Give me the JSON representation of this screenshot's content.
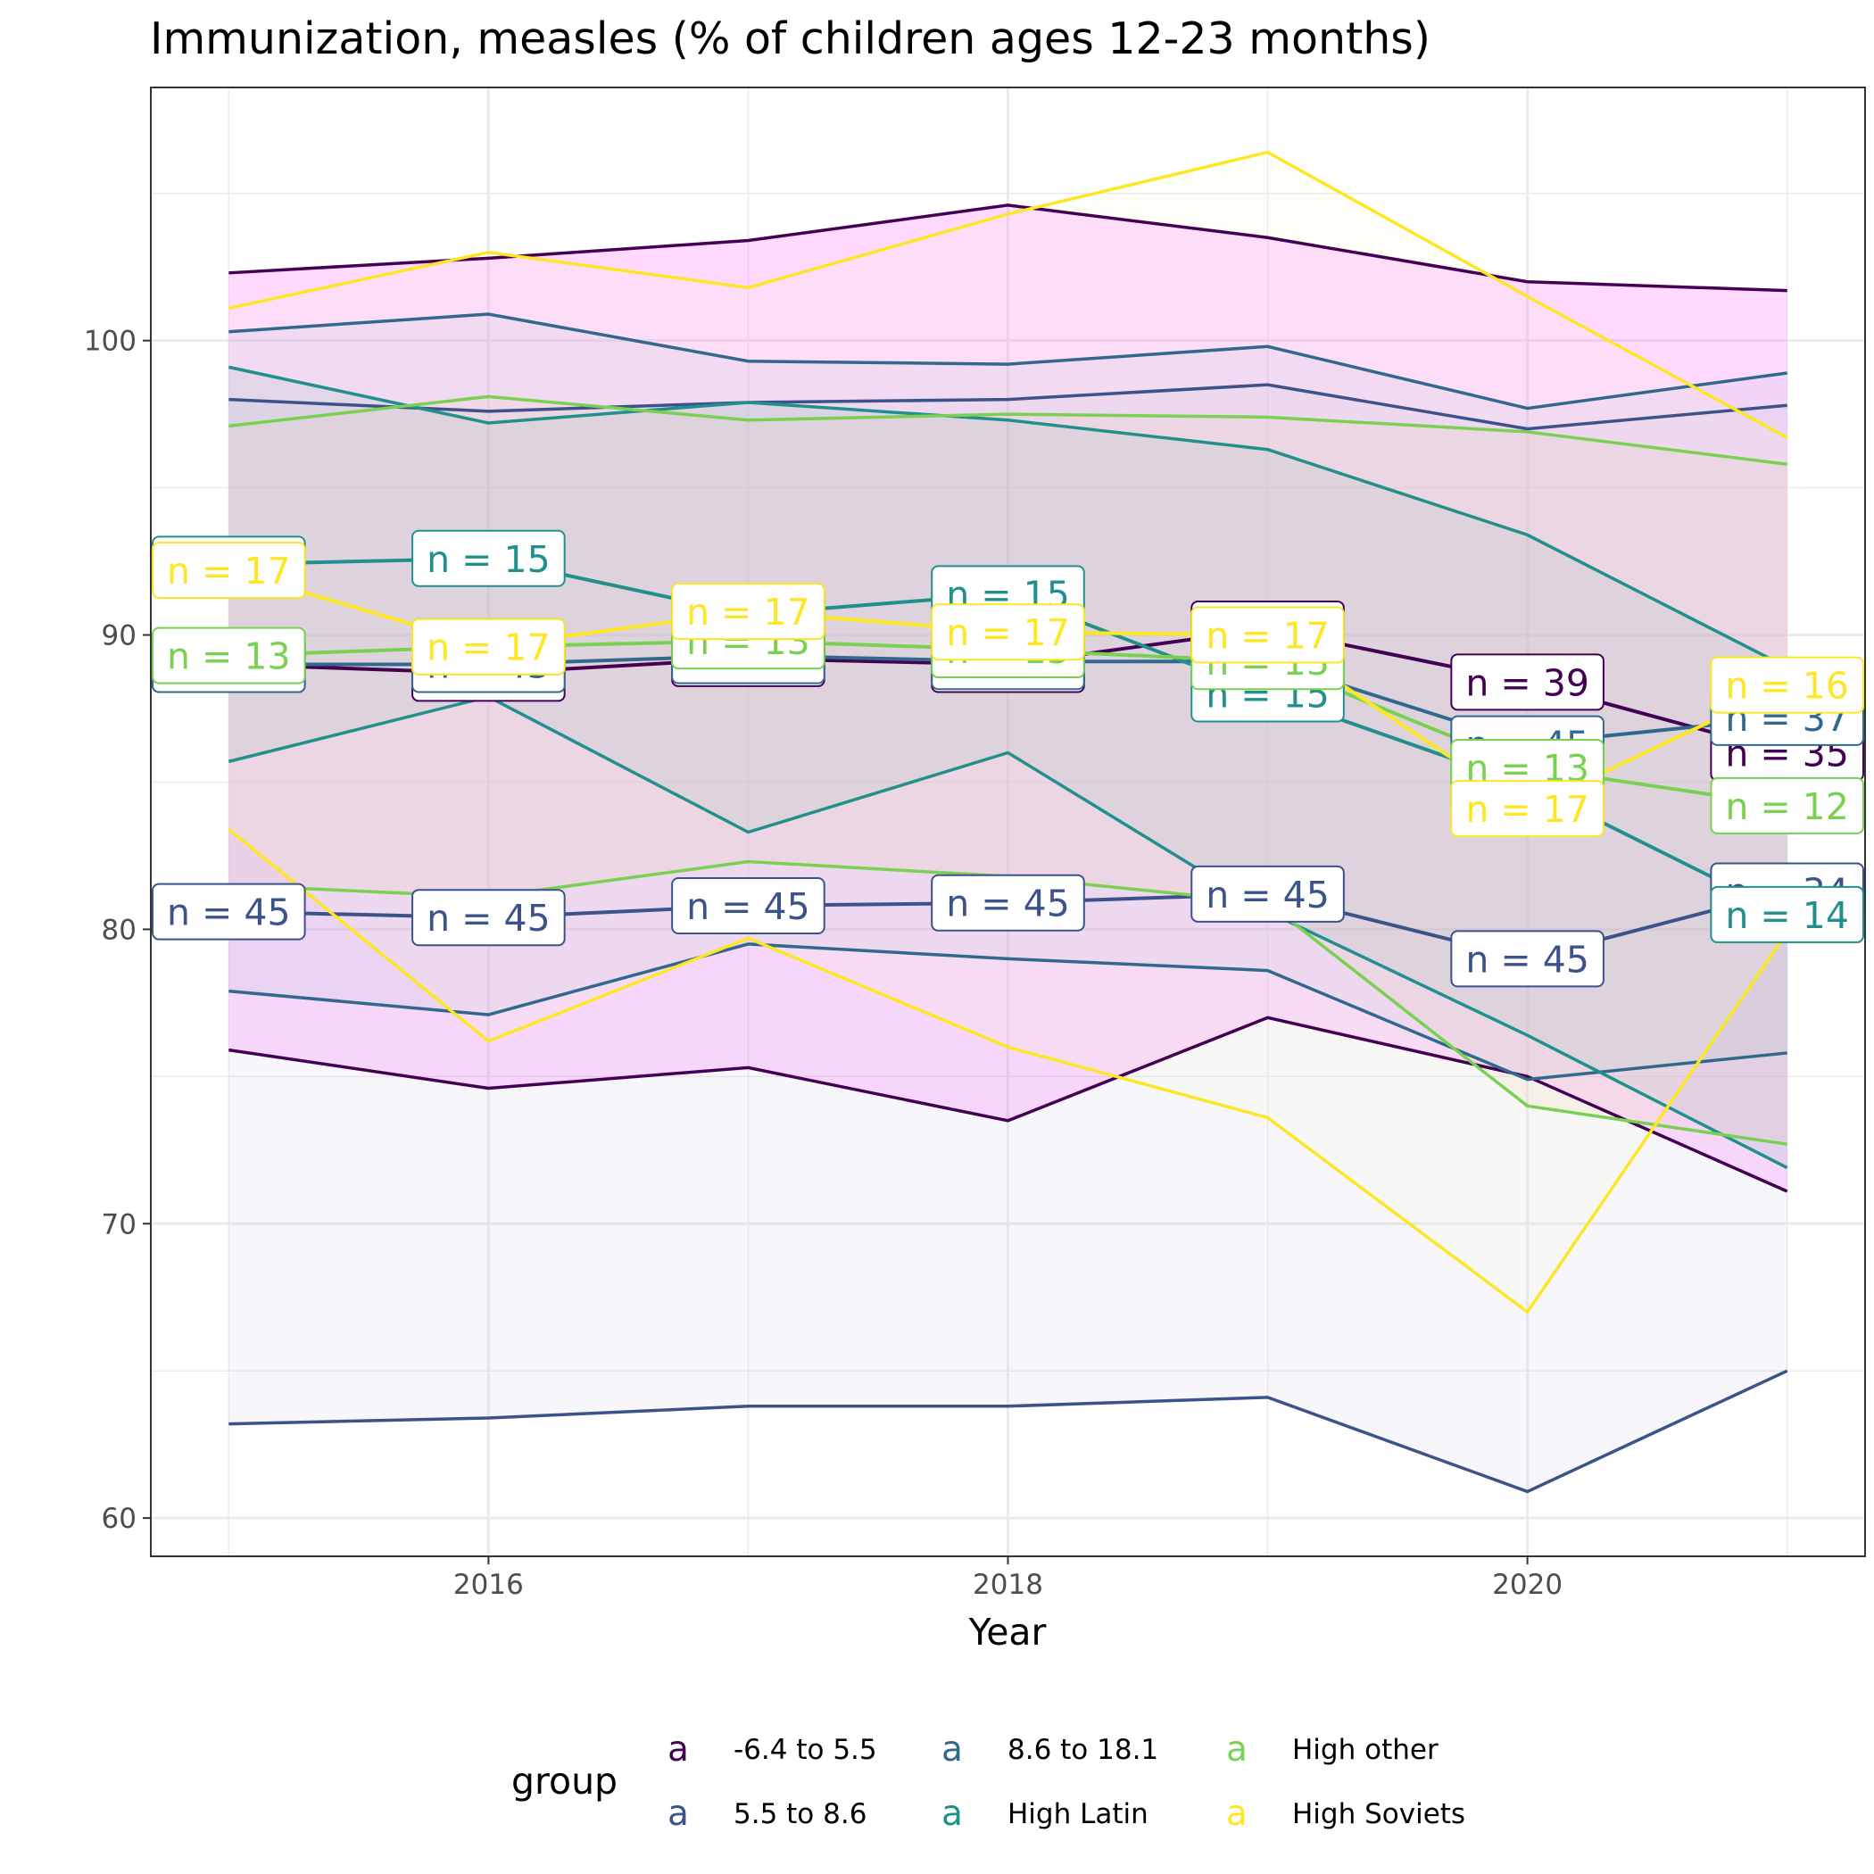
{
  "chart_data": {
    "type": "line",
    "title": "Immunization, measles (% of children ages 12-23 months)",
    "xlabel": "Year",
    "ylabel": "",
    "x": [
      2015,
      2016,
      2017,
      2018,
      2019,
      2020,
      2021
    ],
    "xlim": [
      2014.7,
      2021.3
    ],
    "ylim": [
      58.7,
      108.6
    ],
    "x_ticks": [
      2016,
      2018,
      2020
    ],
    "y_ticks": [
      60,
      70,
      80,
      90,
      100
    ],
    "grid": true,
    "legend": {
      "title": "group",
      "placement": "bottom",
      "key_glyph": "a",
      "entries": [
        "-6.4 to 5.5",
        "5.5 to 8.6",
        "8.6 to 18.1",
        "High Latin",
        "High other",
        "High Soviets"
      ]
    },
    "series": [
      {
        "name": "-6.4 to 5.5",
        "color": "#440154",
        "fill": "#ff00ff",
        "mean": [
          89.0,
          88.7,
          89.2,
          89.0,
          90.2,
          88.4,
          86.0
        ],
        "upper": [
          102.3,
          102.8,
          103.4,
          104.6,
          103.5,
          102.0,
          101.7
        ],
        "lower": [
          75.9,
          74.6,
          75.3,
          73.5,
          77.0,
          75.0,
          71.1
        ],
        "n_labels": [
          "n = 44",
          "n = 45",
          "n = 45",
          "n = 45",
          "n = 45",
          "n = 39",
          "n = 35"
        ]
      },
      {
        "name": "5.5 to 8.6",
        "color": "#3b528b",
        "fill": "#c8c8e6",
        "mean": [
          80.6,
          80.4,
          80.8,
          80.9,
          81.2,
          79.0,
          81.3
        ],
        "upper": [
          98.0,
          97.6,
          97.9,
          98.0,
          98.5,
          97.0,
          97.8
        ],
        "lower": [
          63.2,
          63.4,
          63.8,
          63.8,
          64.1,
          60.9,
          65.0
        ],
        "n_labels": [
          "n = 45",
          "n = 45",
          "n = 45",
          "n = 45",
          "n = 45",
          "n = 45",
          "n = 34"
        ]
      },
      {
        "name": "8.6 to 18.1",
        "color": "#31688e",
        "fill": "#a8c0d0",
        "mean": [
          89.0,
          89.0,
          89.3,
          89.1,
          89.1,
          86.3,
          87.2
        ],
        "upper": [
          100.3,
          100.9,
          99.3,
          99.2,
          99.8,
          97.7,
          98.9
        ],
        "lower": [
          77.9,
          77.1,
          79.5,
          79.0,
          78.6,
          74.9,
          75.8
        ],
        "n_labels": [
          "n = 44",
          "n = 45",
          "n = 45",
          "n = 45",
          "n = 45",
          "n = 45",
          "n = 37"
        ]
      },
      {
        "name": "High Latin",
        "color": "#21908c",
        "fill": "#6bb5a8",
        "mean": [
          92.4,
          92.6,
          90.7,
          91.4,
          88.0,
          84.9,
          80.5
        ],
        "upper": [
          99.1,
          97.2,
          97.9,
          97.3,
          96.3,
          93.4,
          88.9
        ],
        "lower": [
          85.7,
          87.9,
          83.3,
          86.0,
          80.6,
          76.4,
          71.9
        ],
        "n_labels": [
          "n = 15",
          "n = 15",
          "n = 15",
          "n = 15",
          "n = 15",
          "n = 15",
          "n = 14"
        ]
      },
      {
        "name": "High other",
        "color": "#7ad151",
        "fill": "#e8c8a0",
        "mean": [
          89.3,
          89.6,
          89.8,
          89.5,
          89.1,
          85.5,
          84.2
        ],
        "upper": [
          97.1,
          98.1,
          97.3,
          97.5,
          97.4,
          96.9,
          95.8
        ],
        "lower": [
          81.5,
          81.1,
          82.3,
          81.8,
          80.9,
          74.0,
          72.7
        ],
        "n_labels": [
          "n = 13",
          "n = 13",
          "n = 13",
          "n = 13",
          "n = 13",
          "n = 13",
          "n = 12"
        ]
      },
      {
        "name": "High Soviets",
        "color": "#fde725",
        "fill": "#fbf5d8",
        "mean": [
          92.2,
          89.6,
          90.8,
          90.1,
          90.0,
          84.1,
          88.3
        ],
        "upper": [
          101.1,
          103.0,
          101.8,
          104.3,
          106.4,
          101.5,
          96.7
        ],
        "lower": [
          83.4,
          76.2,
          79.7,
          76.0,
          73.6,
          67.0,
          79.9
        ],
        "n_labels": [
          "n = 17",
          "n = 17",
          "n = 17",
          "n = 17",
          "n = 17",
          "n = 17",
          "n = 16"
        ]
      }
    ]
  }
}
